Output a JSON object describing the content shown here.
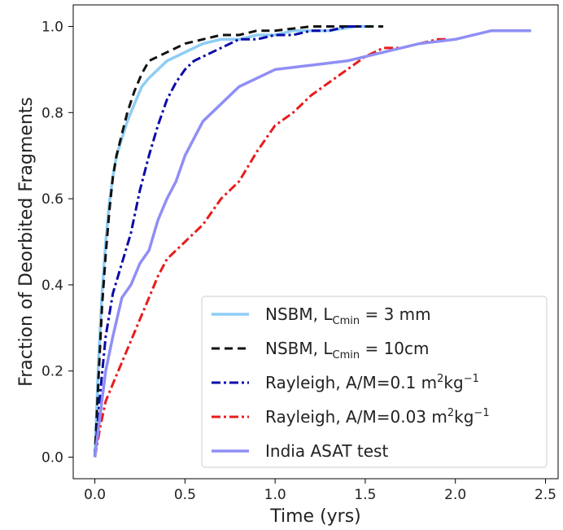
{
  "chart_data": {
    "type": "line",
    "title": "",
    "xlabel": "Time (yrs)",
    "ylabel": "Fraction of Deorbited Fragments",
    "xlim": [
      -0.12,
      2.57
    ],
    "ylim": [
      -0.05,
      1.05
    ],
    "xticks": [
      0.0,
      0.5,
      1.0,
      1.5,
      2.0,
      2.5
    ],
    "xtick_labels": [
      "0.0",
      "0.5",
      "1.0",
      "1.5",
      "2.0",
      "2.5"
    ],
    "yticks": [
      0.0,
      0.2,
      0.4,
      0.6,
      0.8,
      1.0
    ],
    "ytick_labels": [
      "0.0",
      "0.2",
      "0.4",
      "0.6",
      "0.8",
      "1.0"
    ],
    "grid": false,
    "legend_position": "lower-right",
    "series": [
      {
        "key": "nsbm3mm",
        "legend": {
          "pre": "NSBM, L",
          "sub": "Cmin",
          "post": " = 3 mm",
          "sup": "",
          "tail": ""
        },
        "color": "#8ecdf5",
        "style": "solid",
        "x": [
          0.0,
          0.02,
          0.04,
          0.06,
          0.08,
          0.1,
          0.12,
          0.15,
          0.18,
          0.22,
          0.26,
          0.3,
          0.35,
          0.4,
          0.45,
          0.5,
          0.6,
          0.7,
          0.8,
          0.9,
          1.0,
          1.1,
          1.2,
          1.3,
          1.45,
          1.55
        ],
        "y": [
          0.0,
          0.22,
          0.38,
          0.5,
          0.59,
          0.65,
          0.7,
          0.74,
          0.78,
          0.82,
          0.86,
          0.88,
          0.9,
          0.92,
          0.93,
          0.94,
          0.96,
          0.97,
          0.97,
          0.98,
          0.98,
          0.99,
          0.99,
          0.99,
          1.0,
          1.0
        ]
      },
      {
        "key": "nsbm10cm",
        "legend": {
          "pre": "NSBM, L",
          "sub": "Cmin",
          "post": " = 10cm",
          "sup": "",
          "tail": ""
        },
        "color": "#111111",
        "style": "dashed",
        "x": [
          0.0,
          0.02,
          0.04,
          0.06,
          0.08,
          0.1,
          0.12,
          0.15,
          0.18,
          0.22,
          0.26,
          0.3,
          0.35,
          0.4,
          0.5,
          0.6,
          0.7,
          0.8,
          0.9,
          1.0,
          1.2,
          1.4,
          1.6
        ],
        "y": [
          0.0,
          0.18,
          0.35,
          0.47,
          0.57,
          0.65,
          0.7,
          0.75,
          0.8,
          0.85,
          0.89,
          0.92,
          0.93,
          0.94,
          0.96,
          0.97,
          0.98,
          0.98,
          0.99,
          0.99,
          1.0,
          1.0,
          1.0
        ]
      },
      {
        "key": "rayleigh01",
        "legend": {
          "pre": "Rayleigh, A/M=0.1 m",
          "sub": "",
          "post": "",
          "sup": "2",
          "tail": "kg",
          "sup2": "−1"
        },
        "color": "#0a0aa8",
        "style": "dashdot",
        "x": [
          0.0,
          0.03,
          0.06,
          0.1,
          0.15,
          0.2,
          0.25,
          0.3,
          0.35,
          0.4,
          0.45,
          0.5,
          0.55,
          0.6,
          0.7,
          0.8,
          0.9,
          1.0,
          1.1,
          1.2,
          1.3,
          1.4,
          1.5
        ],
        "y": [
          0.0,
          0.15,
          0.28,
          0.38,
          0.45,
          0.52,
          0.62,
          0.7,
          0.77,
          0.83,
          0.87,
          0.9,
          0.92,
          0.93,
          0.95,
          0.97,
          0.97,
          0.98,
          0.98,
          0.99,
          0.99,
          1.0,
          1.0
        ]
      },
      {
        "key": "rayleigh003",
        "legend": {
          "pre": "Rayleigh, A/M=0.03 m",
          "sub": "",
          "post": "",
          "sup": "2",
          "tail": "kg",
          "sup2": "−1"
        },
        "color": "#e81c1c",
        "style": "dashdot",
        "x": [
          0.0,
          0.03,
          0.06,
          0.1,
          0.15,
          0.2,
          0.25,
          0.3,
          0.35,
          0.4,
          0.5,
          0.6,
          0.7,
          0.8,
          0.9,
          1.0,
          1.1,
          1.2,
          1.3,
          1.4,
          1.5,
          1.6,
          1.7,
          1.8,
          1.9,
          1.95
        ],
        "y": [
          0.0,
          0.07,
          0.13,
          0.17,
          0.22,
          0.27,
          0.32,
          0.37,
          0.42,
          0.46,
          0.5,
          0.54,
          0.6,
          0.64,
          0.71,
          0.77,
          0.8,
          0.84,
          0.87,
          0.9,
          0.93,
          0.95,
          0.95,
          0.96,
          0.97,
          0.97
        ]
      },
      {
        "key": "india",
        "legend": {
          "pre": "India ASAT test",
          "sub": "",
          "post": "",
          "sup": "",
          "tail": ""
        },
        "color": "#8f8ff5",
        "style": "solid",
        "x": [
          0.0,
          0.03,
          0.06,
          0.1,
          0.15,
          0.2,
          0.25,
          0.3,
          0.35,
          0.4,
          0.45,
          0.5,
          0.55,
          0.6,
          0.65,
          0.7,
          0.8,
          0.9,
          1.0,
          1.2,
          1.4,
          1.6,
          1.8,
          2.0,
          2.2,
          2.42
        ],
        "y": [
          0.0,
          0.1,
          0.2,
          0.28,
          0.37,
          0.4,
          0.45,
          0.48,
          0.55,
          0.6,
          0.64,
          0.7,
          0.74,
          0.78,
          0.8,
          0.82,
          0.86,
          0.88,
          0.9,
          0.91,
          0.92,
          0.94,
          0.96,
          0.97,
          0.99,
          0.99
        ]
      }
    ]
  }
}
